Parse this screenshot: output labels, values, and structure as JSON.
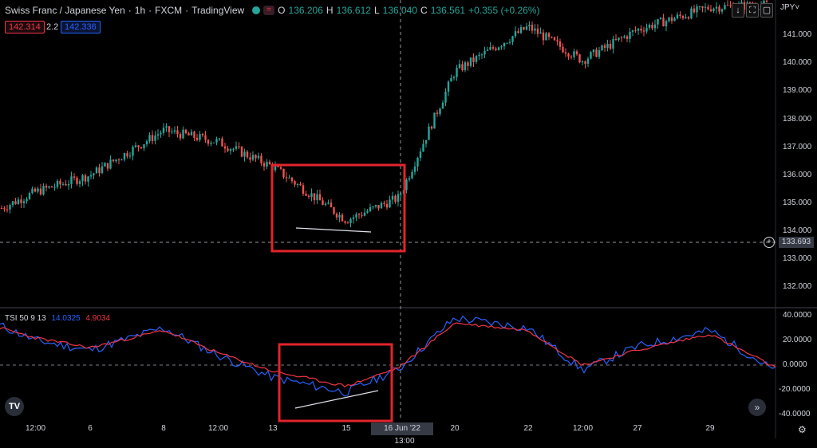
{
  "header": {
    "symbol": "Swiss Franc / Japanese Yen",
    "interval": "1h",
    "exchange": "FXCM",
    "source": "TradingView",
    "ohlc": {
      "o_label": "O",
      "o": "136.206",
      "h_label": "H",
      "h": "136.612",
      "l_label": "L",
      "l": "136.040",
      "c_label": "C",
      "c": "136.561",
      "change": "+0.355 (+0.26%)"
    }
  },
  "quote": {
    "sell": "142.314",
    "spread": "2.2",
    "buy": "142.336"
  },
  "indicator": {
    "name": "TSI 50 9 13",
    "tsi": "14.0325",
    "signal": "4.9034"
  },
  "currency": "JPY",
  "price_axis": [
    "141.000",
    "140.000",
    "139.000",
    "138.000",
    "137.000",
    "136.000",
    "135.000",
    "134.000",
    "133.000",
    "132.000"
  ],
  "tsi_axis": [
    "40.0000",
    "20.0000",
    "0.0000",
    "-20.0000",
    "-40.0000"
  ],
  "time_axis": [
    "12:00",
    "6",
    "8",
    "12:00",
    "13",
    "15",
    "20",
    "22",
    "12:00",
    "27",
    "29"
  ],
  "crosshair": {
    "price": "133.693",
    "time": "16 Jun '22",
    "time2": "13:00"
  },
  "colors": {
    "up": "#26a69a",
    "down": "#ef5350",
    "tsi": "#2962ff",
    "signal": "#f23645",
    "box": "#e3242b",
    "grid": "#1e222d"
  },
  "chart_data": [
    {
      "type": "candlestick",
      "title": "Swiss Franc / Japanese Yen 1h FXCM",
      "ylim": [
        131.3,
        142.2
      ],
      "x": [
        "",
        "12:00",
        "6",
        "8",
        "12:00",
        "13",
        "15",
        "16 Jun '22",
        "20",
        "22",
        "12:00",
        "27",
        "29",
        ""
      ],
      "close": [
        134.8,
        135.4,
        136.0,
        137.6,
        137.2,
        136.3,
        134.4,
        135.2,
        139.7,
        141.3,
        140.1,
        141.2,
        142.0,
        142.1
      ]
    },
    {
      "type": "line",
      "ylim": [
        -45,
        45
      ],
      "x": [
        "",
        "12:00",
        "6",
        "8",
        "12:00",
        "13",
        "15",
        "16 Jun '22",
        "20",
        "22",
        "12:00",
        "27",
        "29",
        ""
      ],
      "series": [
        {
          "name": "TSI",
          "values": [
            32,
            20,
            12,
            30,
            8,
            -10,
            -22,
            -3,
            38,
            30,
            -4,
            15,
            28,
            -5
          ]
        },
        {
          "name": "Signal",
          "values": [
            30,
            22,
            14,
            28,
            10,
            -5,
            -17,
            -2,
            34,
            28,
            0,
            12,
            25,
            -2
          ]
        }
      ]
    }
  ]
}
